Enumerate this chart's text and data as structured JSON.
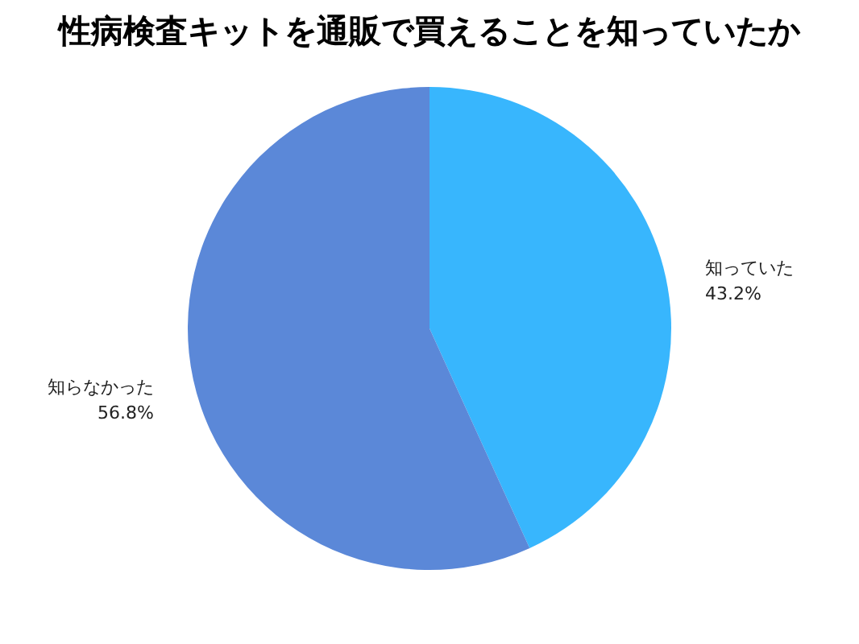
{
  "chart_data": {
    "type": "pie",
    "title": "性病検査キットを通販で買えることを知っていたか",
    "categories": [
      "知っていた",
      "知らなかった"
    ],
    "values": [
      43.2,
      56.8
    ],
    "value_labels": [
      "43.2%",
      "56.8%"
    ],
    "colors": [
      "#38b6fd",
      "#5b88d8"
    ],
    "legend": false
  }
}
